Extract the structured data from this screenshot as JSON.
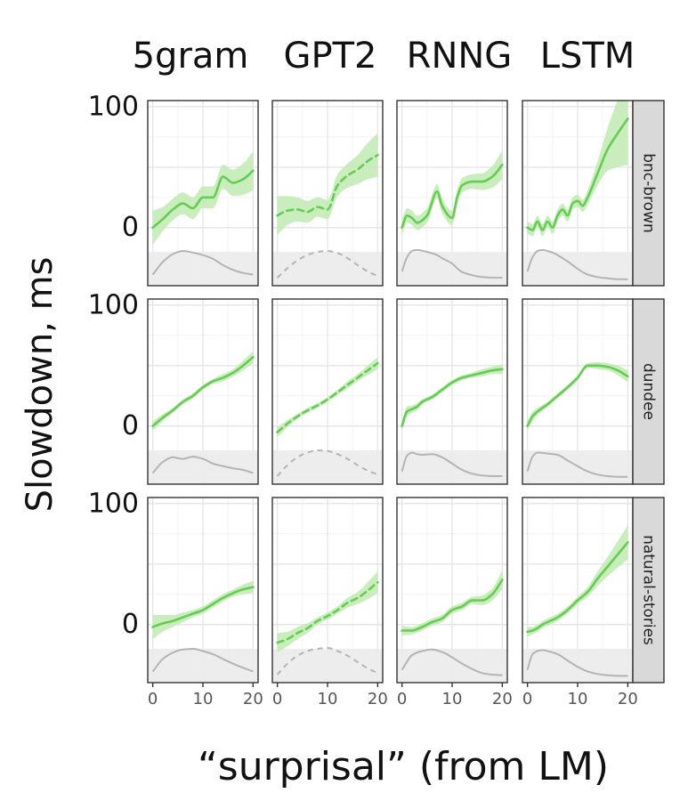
{
  "chart_data": {
    "type": "line",
    "facet_columns": [
      "5gram",
      "GPT2",
      "RNNG",
      "LSTM"
    ],
    "facet_rows": [
      "bnc-brown",
      "dundee",
      "natural-stories"
    ],
    "xlabel": "“surprisal” (from LM)",
    "ylabel": "Slowdown, ms",
    "x_ticks": [
      "0",
      "10",
      "20"
    ],
    "y_ticks": [
      "0",
      "100"
    ],
    "x_range": [
      -1,
      21
    ],
    "y_range": [
      -48,
      105
    ],
    "density_band": [
      -48,
      -20
    ],
    "colors": {
      "effect": "#66cc55",
      "ribbon": "#bfeab2",
      "density": "#b4b4b4",
      "density_band": "#ebebeb"
    },
    "panels": [
      {
        "row": "bnc-brown",
        "col": "5gram",
        "dashed": false,
        "x": [
          0,
          2,
          4,
          6,
          8,
          10,
          12,
          14,
          16,
          18,
          20
        ],
        "y": [
          0,
          7,
          15,
          20,
          16,
          25,
          25,
          42,
          37,
          40,
          47
        ],
        "ci": [
          14,
          10,
          9,
          9,
          9,
          9,
          9,
          10,
          11,
          13,
          16
        ],
        "density": [
          0.2,
          0.6,
          0.85,
          0.95,
          0.9,
          0.82,
          0.7,
          0.5,
          0.35,
          0.25,
          0.2
        ]
      },
      {
        "row": "bnc-brown",
        "col": "GPT2",
        "dashed": true,
        "x": [
          0,
          2,
          4,
          6,
          8,
          10,
          12,
          14,
          16,
          18,
          20
        ],
        "y": [
          10,
          14,
          15,
          13,
          17,
          15,
          35,
          43,
          48,
          55,
          60
        ],
        "ci": [
          16,
          12,
          10,
          9,
          8,
          8,
          9,
          10,
          12,
          15,
          18
        ],
        "density": [
          0.1,
          0.4,
          0.65,
          0.82,
          0.92,
          0.95,
          0.88,
          0.72,
          0.5,
          0.3,
          0.15
        ]
      },
      {
        "row": "bnc-brown",
        "col": "RNNG",
        "dashed": false,
        "x": [
          0,
          1,
          2,
          3,
          5,
          7,
          8,
          10,
          11,
          12,
          14,
          16,
          18,
          20
        ],
        "y": [
          0,
          10,
          8,
          4,
          10,
          30,
          18,
          8,
          25,
          35,
          38,
          38,
          42,
          52
        ],
        "ci": [
          6,
          6,
          6,
          6,
          6,
          6,
          6,
          6,
          6,
          6,
          6,
          7,
          9,
          12
        ],
        "density": [
          0.3,
          0.75,
          0.95,
          0.98,
          0.92,
          0.82,
          0.72,
          0.55,
          0.4,
          0.28,
          0.18,
          0.12,
          0.1,
          0.1
        ]
      },
      {
        "row": "bnc-brown",
        "col": "LSTM",
        "dashed": false,
        "x": [
          0,
          1,
          2,
          3,
          4,
          5,
          6,
          7,
          8,
          9,
          10,
          11,
          12,
          14,
          16,
          18,
          20
        ],
        "y": [
          0,
          -2,
          5,
          -2,
          5,
          0,
          10,
          15,
          10,
          20,
          22,
          18,
          25,
          45,
          65,
          78,
          90
        ],
        "ci": [
          5,
          5,
          5,
          5,
          5,
          5,
          5,
          5,
          5,
          5,
          5,
          5,
          6,
          10,
          18,
          28,
          38
        ],
        "density": [
          0.3,
          0.75,
          0.95,
          0.98,
          0.95,
          0.9,
          0.82,
          0.72,
          0.62,
          0.5,
          0.38,
          0.28,
          0.2,
          0.12,
          0.08,
          0.05,
          0.05
        ]
      },
      {
        "row": "dundee",
        "col": "5gram",
        "dashed": false,
        "x": [
          0,
          2,
          4,
          6,
          8,
          10,
          12,
          14,
          16,
          18,
          20
        ],
        "y": [
          0,
          7,
          13,
          20,
          25,
          32,
          37,
          40,
          44,
          50,
          57
        ],
        "ci": [
          4,
          3,
          2,
          2,
          2,
          2,
          2,
          3,
          3,
          4,
          5
        ],
        "density": [
          0.2,
          0.55,
          0.7,
          0.65,
          0.72,
          0.65,
          0.5,
          0.42,
          0.35,
          0.3,
          0.2
        ]
      },
      {
        "row": "dundee",
        "col": "GPT2",
        "dashed": true,
        "x": [
          0,
          2,
          4,
          6,
          8,
          10,
          12,
          14,
          16,
          18,
          20
        ],
        "y": [
          -5,
          2,
          8,
          13,
          17,
          22,
          28,
          34,
          40,
          46,
          52
        ],
        "ci": [
          4,
          3,
          2,
          2,
          2,
          2,
          2,
          3,
          3,
          4,
          5
        ],
        "density": [
          0.1,
          0.45,
          0.7,
          0.85,
          0.92,
          0.9,
          0.8,
          0.65,
          0.45,
          0.28,
          0.15
        ]
      },
      {
        "row": "dundee",
        "col": "RNNG",
        "dashed": false,
        "x": [
          0,
          1,
          2,
          3,
          4,
          6,
          8,
          10,
          12,
          14,
          16,
          18,
          20
        ],
        "y": [
          0,
          12,
          14,
          16,
          20,
          24,
          30,
          36,
          40,
          42,
          44,
          46,
          47
        ],
        "ci": [
          4,
          4,
          3,
          3,
          2,
          2,
          2,
          2,
          2,
          2,
          3,
          3,
          4
        ],
        "density": [
          0.25,
          0.75,
          0.85,
          0.8,
          0.78,
          0.8,
          0.7,
          0.5,
          0.3,
          0.18,
          0.12,
          0.1,
          0.1
        ]
      },
      {
        "row": "dundee",
        "col": "LSTM",
        "dashed": false,
        "x": [
          0,
          1,
          2,
          4,
          6,
          8,
          10,
          12,
          14,
          16,
          18,
          20
        ],
        "y": [
          0,
          8,
          12,
          18,
          25,
          32,
          40,
          50,
          50,
          49,
          46,
          41
        ],
        "ci": [
          4,
          4,
          3,
          2,
          2,
          2,
          2,
          2,
          3,
          3,
          4,
          5
        ],
        "density": [
          0.25,
          0.72,
          0.85,
          0.82,
          0.78,
          0.6,
          0.42,
          0.25,
          0.15,
          0.1,
          0.08,
          0.08
        ]
      },
      {
        "row": "natural-stories",
        "col": "5gram",
        "dashed": false,
        "x": [
          0,
          2,
          4,
          6,
          8,
          10,
          12,
          14,
          16,
          18,
          20
        ],
        "y": [
          -2,
          1,
          3,
          6,
          9,
          12,
          17,
          22,
          26,
          29,
          31
        ],
        "ci": [
          10,
          7,
          5,
          4,
          3,
          3,
          3,
          3,
          3,
          4,
          5
        ],
        "density": [
          0.2,
          0.6,
          0.8,
          0.9,
          0.92,
          0.85,
          0.75,
          0.6,
          0.45,
          0.32,
          0.2
        ]
      },
      {
        "row": "natural-stories",
        "col": "GPT2",
        "dashed": true,
        "x": [
          0,
          2,
          4,
          6,
          8,
          10,
          12,
          14,
          16,
          18,
          20
        ],
        "y": [
          -15,
          -12,
          -7,
          -3,
          3,
          7,
          12,
          18,
          22,
          28,
          35
        ],
        "ci": [
          8,
          6,
          5,
          4,
          3,
          3,
          3,
          4,
          5,
          7,
          9
        ],
        "density": [
          0.1,
          0.45,
          0.7,
          0.85,
          0.92,
          0.95,
          0.85,
          0.7,
          0.5,
          0.3,
          0.15
        ]
      },
      {
        "row": "natural-stories",
        "col": "RNNG",
        "dashed": false,
        "x": [
          0,
          2,
          4,
          6,
          8,
          10,
          12,
          14,
          16,
          18,
          20
        ],
        "y": [
          -5,
          -5,
          -2,
          2,
          5,
          12,
          15,
          20,
          20,
          25,
          37
        ],
        "ci": [
          4,
          3,
          3,
          3,
          3,
          3,
          3,
          3,
          4,
          5,
          8
        ],
        "density": [
          0.25,
          0.72,
          0.85,
          0.9,
          0.82,
          0.65,
          0.45,
          0.28,
          0.15,
          0.1,
          0.08
        ]
      },
      {
        "row": "natural-stories",
        "col": "LSTM",
        "dashed": false,
        "x": [
          0,
          1,
          2,
          3,
          4,
          6,
          8,
          10,
          12,
          14,
          16,
          18,
          20
        ],
        "y": [
          -6,
          -5,
          -3,
          0,
          2,
          6,
          12,
          20,
          27,
          38,
          48,
          58,
          68
        ],
        "ci": [
          4,
          3,
          3,
          3,
          3,
          3,
          3,
          3,
          4,
          6,
          8,
          11,
          14
        ],
        "density": [
          0.25,
          0.75,
          0.85,
          0.88,
          0.85,
          0.75,
          0.55,
          0.35,
          0.2,
          0.12,
          0.08,
          0.06,
          0.06
        ]
      }
    ]
  }
}
